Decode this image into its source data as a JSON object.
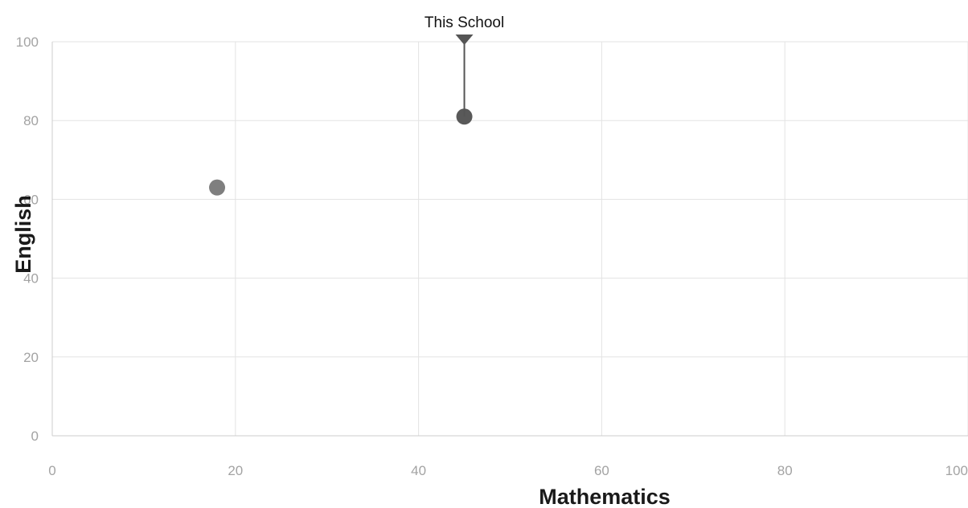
{
  "chart_data": {
    "type": "scatter",
    "xlabel": "Mathematics",
    "ylabel": "English",
    "xlim": [
      0,
      100
    ],
    "ylim": [
      0,
      100
    ],
    "x_ticks": [
      "0",
      "20",
      "40",
      "60",
      "80",
      "100"
    ],
    "y_ticks": [
      "0",
      "20",
      "40",
      "60",
      "80",
      "100"
    ],
    "grid": true,
    "points": [
      {
        "x": 18,
        "y": 63,
        "color": "#7f7f7f"
      },
      {
        "x": 45,
        "y": 81,
        "color": "#595959"
      }
    ],
    "annotation": {
      "text": "This School",
      "x": 45,
      "y": 81,
      "color": "#555555"
    }
  }
}
